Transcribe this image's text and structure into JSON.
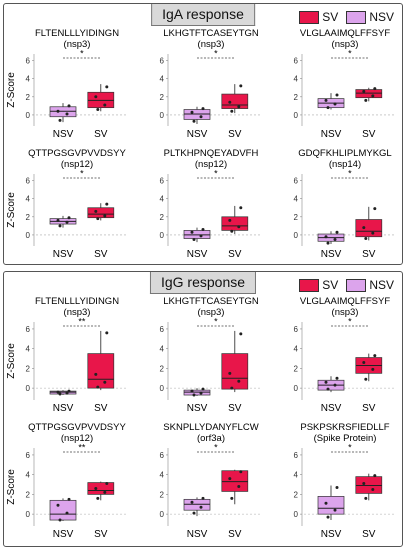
{
  "sections": [
    {
      "title": "IgA response",
      "legend": [
        {
          "label": "SV",
          "color": "#e8164a"
        },
        {
          "label": "NSV",
          "color": "#dca4ec"
        }
      ]
    },
    {
      "title": "IgG response",
      "legend": [
        {
          "label": "SV",
          "color": "#e8164a"
        },
        {
          "label": "NSV",
          "color": "#dca4ec"
        }
      ]
    }
  ],
  "colors": {
    "SV": "#e8164a",
    "NSV": "#dca4ec"
  },
  "chart_data": [
    {
      "type": "box",
      "section": "IgA response",
      "title": "FLTENLLLYIDINGN",
      "subtitle": "(nsp3)",
      "ylabel": "Z-Score",
      "categories": [
        "NSV",
        "SV"
      ],
      "yticks": [
        0,
        2,
        4,
        6
      ],
      "ylim": [
        -1,
        6.5
      ],
      "significance": "*",
      "boxes": [
        {
          "group": "NSV",
          "whislo": -0.8,
          "q1": -0.2,
          "med": 0.4,
          "q3": 0.9,
          "whishi": 1.3
        },
        {
          "group": "SV",
          "whislo": 0.4,
          "q1": 0.8,
          "med": 1.6,
          "q3": 2.5,
          "whishi": 3.4
        }
      ],
      "points": [
        {
          "group": "NSV",
          "values": [
            -0.6,
            0.1,
            0.4,
            1.0
          ]
        },
        {
          "group": "SV",
          "values": [
            0.6,
            1.1,
            2.0,
            3.1
          ]
        }
      ]
    },
    {
      "type": "box",
      "section": "IgA response",
      "title": "LKHGTFTCASEYTGN",
      "subtitle": "(nsp3)",
      "ylabel": "",
      "categories": [
        "NSV",
        "SV"
      ],
      "yticks": [
        0,
        2,
        4,
        6
      ],
      "ylim": [
        -1,
        6.5
      ],
      "significance": "*",
      "boxes": [
        {
          "group": "NSV",
          "whislo": -1.0,
          "q1": -0.5,
          "med": 0.1,
          "q3": 0.6,
          "whishi": 0.9
        },
        {
          "group": "SV",
          "whislo": 0.2,
          "q1": 0.7,
          "med": 1.1,
          "q3": 2.3,
          "whishi": 3.4
        }
      ],
      "points": [
        {
          "group": "NSV",
          "values": [
            -0.7,
            -0.2,
            0.3,
            0.7
          ]
        },
        {
          "group": "SV",
          "values": [
            0.4,
            0.9,
            1.4,
            3.2
          ]
        }
      ]
    },
    {
      "type": "box",
      "section": "IgA response",
      "title": "VLGLAAIMQLFFSYF",
      "subtitle": "(nsp3)",
      "ylabel": "",
      "categories": [
        "NSV",
        "SV"
      ],
      "yticks": [
        0,
        2,
        4,
        6
      ],
      "ylim": [
        -1,
        6.5
      ],
      "significance": "*",
      "boxes": [
        {
          "group": "NSV",
          "whislo": 0.6,
          "q1": 0.8,
          "med": 1.3,
          "q3": 1.8,
          "whishi": 2.4
        },
        {
          "group": "SV",
          "whislo": 1.5,
          "q1": 1.9,
          "med": 2.4,
          "q3": 2.8,
          "whishi": 3.0
        }
      ],
      "points": [
        {
          "group": "NSV",
          "values": [
            0.8,
            1.2,
            1.6,
            2.2
          ]
        },
        {
          "group": "SV",
          "values": [
            1.6,
            2.1,
            2.6,
            2.9
          ]
        }
      ]
    },
    {
      "type": "box",
      "section": "IgA response",
      "title": "QTTPGSGVPVVDSYY",
      "subtitle": "(nsp12)",
      "ylabel": "Z-Score",
      "categories": [
        "NSV",
        "SV"
      ],
      "yticks": [
        0,
        2,
        4,
        6
      ],
      "ylim": [
        -1,
        6.5
      ],
      "significance": "*",
      "boxes": [
        {
          "group": "NSV",
          "whislo": 0.8,
          "q1": 1.2,
          "med": 1.5,
          "q3": 1.8,
          "whishi": 2.1
        },
        {
          "group": "SV",
          "whislo": 1.6,
          "q1": 1.9,
          "med": 2.3,
          "q3": 3.0,
          "whishi": 3.5
        }
      ],
      "points": [
        {
          "group": "NSV",
          "values": [
            1.0,
            1.4,
            1.6,
            1.9
          ]
        },
        {
          "group": "SV",
          "values": [
            1.8,
            2.1,
            2.6,
            3.4
          ]
        }
      ]
    },
    {
      "type": "box",
      "section": "IgA response",
      "title": "PLTKHPNQEYADVFH",
      "subtitle": "(nsp12)",
      "ylabel": "",
      "categories": [
        "NSV",
        "SV"
      ],
      "yticks": [
        0,
        2,
        4,
        6
      ],
      "ylim": [
        -1,
        6.5
      ],
      "significance": "*",
      "boxes": [
        {
          "group": "NSV",
          "whislo": -0.8,
          "q1": -0.4,
          "med": 0.0,
          "q3": 0.5,
          "whishi": 0.8
        },
        {
          "group": "SV",
          "whislo": 0.1,
          "q1": 0.5,
          "med": 1.0,
          "q3": 2.0,
          "whishi": 3.2
        }
      ],
      "points": [
        {
          "group": "NSV",
          "values": [
            -0.5,
            -0.1,
            0.3,
            0.6
          ]
        },
        {
          "group": "SV",
          "values": [
            0.4,
            0.9,
            1.6,
            3.0
          ]
        }
      ]
    },
    {
      "type": "box",
      "section": "IgA response",
      "title": "GDQFKHLIPLMYKGL",
      "subtitle": "(nsp14)",
      "ylabel": "",
      "categories": [
        "NSV",
        "SV"
      ],
      "yticks": [
        0,
        2,
        4,
        6
      ],
      "ylim": [
        -1,
        6.5
      ],
      "significance": "*",
      "boxes": [
        {
          "group": "NSV",
          "whislo": -1.0,
          "q1": -0.7,
          "med": -0.3,
          "q3": 0.1,
          "whishi": 0.4
        },
        {
          "group": "SV",
          "whislo": -0.6,
          "q1": -0.2,
          "med": 0.4,
          "q3": 1.7,
          "whishi": 3.1
        }
      ],
      "points": [
        {
          "group": "NSV",
          "values": [
            -0.9,
            -0.5,
            -0.2,
            0.3
          ]
        },
        {
          "group": "SV",
          "values": [
            -0.4,
            0.2,
            0.8,
            2.9
          ]
        }
      ]
    },
    {
      "type": "box",
      "section": "IgG response",
      "title": "FLTENLLLYIDINGN",
      "subtitle": "(nsp3)",
      "ylabel": "Z-Score",
      "categories": [
        "NSV",
        "SV"
      ],
      "yticks": [
        0,
        2,
        4,
        6
      ],
      "ylim": [
        -1,
        6.5
      ],
      "significance": "**",
      "boxes": [
        {
          "group": "NSV",
          "whislo": -0.7,
          "q1": -0.6,
          "med": -0.4,
          "q3": -0.3,
          "whishi": -0.2
        },
        {
          "group": "SV",
          "whislo": -0.2,
          "q1": 0.0,
          "med": 0.9,
          "q3": 3.5,
          "whishi": 5.8
        }
      ],
      "points": [
        {
          "group": "NSV",
          "values": [
            -0.6,
            -0.5,
            -0.4,
            -0.3
          ]
        },
        {
          "group": "SV",
          "values": [
            0.1,
            0.6,
            1.4,
            5.6
          ]
        }
      ]
    },
    {
      "type": "box",
      "section": "IgG response",
      "title": "LKHGTFTCASEYTGN",
      "subtitle": "(nsp3)",
      "ylabel": "",
      "categories": [
        "NSV",
        "SV"
      ],
      "yticks": [
        0,
        2,
        4,
        6
      ],
      "ylim": [
        -1,
        6.5
      ],
      "significance": "*",
      "boxes": [
        {
          "group": "NSV",
          "whislo": -0.8,
          "q1": -0.7,
          "med": -0.4,
          "q3": -0.2,
          "whishi": 0.0
        },
        {
          "group": "SV",
          "whislo": -0.4,
          "q1": -0.1,
          "med": 1.0,
          "q3": 3.5,
          "whishi": 5.8
        }
      ],
      "points": [
        {
          "group": "NSV",
          "values": [
            -0.7,
            -0.5,
            -0.3,
            -0.1
          ]
        },
        {
          "group": "SV",
          "values": [
            0.0,
            0.7,
            1.5,
            5.5
          ]
        }
      ]
    },
    {
      "type": "box",
      "section": "IgG response",
      "title": "VLGLAAIMQLFFSYF",
      "subtitle": "(nsp3)",
      "ylabel": "",
      "categories": [
        "NSV",
        "SV"
      ],
      "yticks": [
        0,
        2,
        4,
        6
      ],
      "ylim": [
        -1,
        6.5
      ],
      "significance": "*",
      "boxes": [
        {
          "group": "NSV",
          "whislo": -0.4,
          "q1": -0.2,
          "med": 0.3,
          "q3": 0.8,
          "whishi": 1.2
        },
        {
          "group": "SV",
          "whislo": 0.7,
          "q1": 1.5,
          "med": 2.3,
          "q3": 3.1,
          "whishi": 3.5
        }
      ],
      "points": [
        {
          "group": "NSV",
          "values": [
            -0.1,
            0.3,
            0.6,
            1.0
          ]
        },
        {
          "group": "SV",
          "values": [
            0.9,
            1.9,
            2.6,
            3.3
          ]
        }
      ]
    },
    {
      "type": "box",
      "section": "IgG response",
      "title": "QTTPGSGVPVVDSYY",
      "subtitle": "(nsp12)",
      "ylabel": "Z-Score",
      "categories": [
        "NSV",
        "SV"
      ],
      "yticks": [
        0,
        2,
        4,
        6
      ],
      "ylim": [
        -1,
        6.5
      ],
      "significance": "**",
      "boxes": [
        {
          "group": "NSV",
          "whislo": -0.7,
          "q1": -0.6,
          "med": 0.0,
          "q3": 1.4,
          "whishi": 1.6
        },
        {
          "group": "SV",
          "whislo": 1.4,
          "q1": 2.0,
          "med": 2.4,
          "q3": 3.2,
          "whishi": 3.3
        }
      ],
      "points": [
        {
          "group": "NSV",
          "values": [
            -0.6,
            0.1,
            0.9,
            1.5
          ]
        },
        {
          "group": "SV",
          "values": [
            1.6,
            2.2,
            2.6,
            3.1
          ]
        }
      ]
    },
    {
      "type": "box",
      "section": "IgG response",
      "title": "SKNPLLYDANYFLCW",
      "subtitle": "(orf3a)",
      "ylabel": "",
      "categories": [
        "NSV",
        "SV"
      ],
      "yticks": [
        0,
        2,
        4,
        6
      ],
      "ylim": [
        -1,
        6.5
      ],
      "significance": "*",
      "boxes": [
        {
          "group": "NSV",
          "whislo": -0.2,
          "q1": 0.4,
          "med": 1.0,
          "q3": 1.5,
          "whishi": 1.7
        },
        {
          "group": "SV",
          "whislo": 1.0,
          "q1": 2.3,
          "med": 3.3,
          "q3": 4.4,
          "whishi": 4.5
        }
      ],
      "points": [
        {
          "group": "NSV",
          "values": [
            0.1,
            0.7,
            1.2,
            1.6
          ]
        },
        {
          "group": "SV",
          "values": [
            1.6,
            2.8,
            3.6,
            4.3
          ]
        }
      ]
    },
    {
      "type": "box",
      "section": "IgG response",
      "title": "PSKPSKRSFIEDLLF",
      "subtitle": "(Spike Protein)",
      "ylabel": "",
      "categories": [
        "NSV",
        "SV"
      ],
      "yticks": [
        0,
        2,
        4,
        6
      ],
      "ylim": [
        -1,
        6.5
      ],
      "significance": "*",
      "boxes": [
        {
          "group": "NSV",
          "whislo": -0.6,
          "q1": 0.0,
          "med": 0.6,
          "q3": 1.8,
          "whishi": 2.9
        },
        {
          "group": "SV",
          "whislo": 1.4,
          "q1": 2.1,
          "med": 2.9,
          "q3": 3.8,
          "whishi": 4.1
        }
      ],
      "points": [
        {
          "group": "NSV",
          "values": [
            -0.3,
            0.4,
            1.1,
            2.7
          ]
        },
        {
          "group": "SV",
          "values": [
            1.6,
            2.5,
            3.1,
            3.9
          ]
        }
      ]
    }
  ]
}
